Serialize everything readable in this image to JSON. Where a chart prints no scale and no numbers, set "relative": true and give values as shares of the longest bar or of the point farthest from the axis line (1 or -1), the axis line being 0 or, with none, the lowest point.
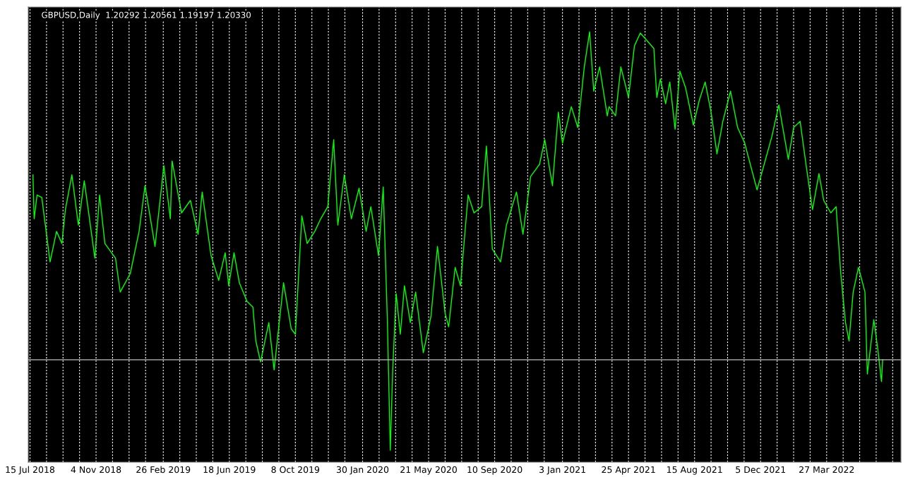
{
  "chart_data": {
    "type": "line",
    "title": "GBPUSD,Daily",
    "annotations": [
      "1.20292 1.20561 1.19197 1.20330"
    ],
    "relative": true,
    "grid": "x",
    "tick_labels": "x",
    "xlim": [
      "2018-07-12",
      "2022-07-31"
    ],
    "xticks": [
      {
        "value": "2018-07-15",
        "label": "15 Jul 2018"
      },
      {
        "value": "2018-08-12",
        "label": null
      },
      {
        "value": "2018-09-09",
        "label": null
      },
      {
        "value": "2018-10-07",
        "label": null
      },
      {
        "value": "2018-11-04",
        "label": "4 Nov 2018"
      },
      {
        "value": "2018-12-02",
        "label": null
      },
      {
        "value": "2018-12-30",
        "label": null
      },
      {
        "value": "2019-01-27",
        "label": null
      },
      {
        "value": "2019-02-26",
        "label": "26 Feb 2019"
      },
      {
        "value": "2019-03-26",
        "label": null
      },
      {
        "value": "2019-04-23",
        "label": null
      },
      {
        "value": "2019-05-21",
        "label": null
      },
      {
        "value": "2019-06-18",
        "label": "18 Jun 2019"
      },
      {
        "value": "2019-07-16",
        "label": null
      },
      {
        "value": "2019-08-13",
        "label": null
      },
      {
        "value": "2019-09-10",
        "label": null
      },
      {
        "value": "2019-10-08",
        "label": "8 Oct 2019"
      },
      {
        "value": "2019-11-05",
        "label": null
      },
      {
        "value": "2019-12-03",
        "label": null
      },
      {
        "value": "2019-12-31",
        "label": null
      },
      {
        "value": "2020-01-30",
        "label": "30 Jan 2020"
      },
      {
        "value": "2020-02-27",
        "label": null
      },
      {
        "value": "2020-03-26",
        "label": null
      },
      {
        "value": "2020-04-23",
        "label": null
      },
      {
        "value": "2020-05-21",
        "label": "21 May 2020"
      },
      {
        "value": "2020-06-18",
        "label": null
      },
      {
        "value": "2020-07-16",
        "label": null
      },
      {
        "value": "2020-08-13",
        "label": null
      },
      {
        "value": "2020-09-10",
        "label": "10 Sep 2020"
      },
      {
        "value": "2020-10-08",
        "label": null
      },
      {
        "value": "2020-11-05",
        "label": null
      },
      {
        "value": "2020-12-03",
        "label": null
      },
      {
        "value": "2021-01-03",
        "label": "3 Jan 2021"
      },
      {
        "value": "2021-01-31",
        "label": null
      },
      {
        "value": "2021-02-28",
        "label": null
      },
      {
        "value": "2021-03-28",
        "label": null
      },
      {
        "value": "2021-04-25",
        "label": "25 Apr 2021"
      },
      {
        "value": "2021-05-23",
        "label": null
      },
      {
        "value": "2021-06-20",
        "label": null
      },
      {
        "value": "2021-07-18",
        "label": null
      },
      {
        "value": "2021-08-15",
        "label": "15 Aug 2021"
      },
      {
        "value": "2021-09-12",
        "label": null
      },
      {
        "value": "2021-10-10",
        "label": null
      },
      {
        "value": "2021-11-07",
        "label": null
      },
      {
        "value": "2021-12-05",
        "label": "5 Dec 2021"
      },
      {
        "value": "2022-01-02",
        "label": null
      },
      {
        "value": "2022-01-30",
        "label": null
      },
      {
        "value": "2022-02-27",
        "label": null
      },
      {
        "value": "2022-03-27",
        "label": "27 Mar 2022"
      },
      {
        "value": "2022-04-24",
        "label": null
      },
      {
        "value": "2022-05-22",
        "label": null
      },
      {
        "value": "2022-06-19",
        "label": null
      },
      {
        "value": "2022-07-17",
        "label": null
      }
    ],
    "ref_lines": [
      {
        "axis": "y",
        "value": 0.216,
        "color": "#c0c0c0"
      }
    ],
    "series": [
      {
        "color": "#00ff00",
        "x": [
          "2018-07-20",
          "2018-07-22",
          "2018-07-27",
          "2018-08-04",
          "2018-08-18",
          "2018-08-29",
          "2018-09-07",
          "2018-09-13",
          "2018-09-24",
          "2018-10-05",
          "2018-10-15",
          "2018-11-02",
          "2018-11-10",
          "2018-11-19",
          "2018-12-07",
          "2018-12-15",
          "2019-01-01",
          "2019-01-16",
          "2019-01-26",
          "2019-02-12",
          "2019-02-27",
          "2019-03-10",
          "2019-03-13",
          "2019-03-29",
          "2019-04-13",
          "2019-04-26",
          "2019-05-03",
          "2019-05-18",
          "2019-05-31",
          "2019-06-11",
          "2019-06-17",
          "2019-06-26",
          "2019-07-05",
          "2019-07-18",
          "2019-07-28",
          "2019-08-02",
          "2019-08-10",
          "2019-08-24",
          "2019-09-02",
          "2019-09-18",
          "2019-10-01",
          "2019-10-08",
          "2019-10-19",
          "2019-10-28",
          "2019-11-10",
          "2019-11-20",
          "2019-12-02",
          "2019-12-12",
          "2019-12-19",
          "2019-12-30",
          "2020-01-11",
          "2020-01-24",
          "2020-02-05",
          "2020-02-13",
          "2020-02-26",
          "2020-03-05",
          "2020-03-12",
          "2020-03-17",
          "2020-03-21",
          "2020-03-27",
          "2020-04-03",
          "2020-04-10",
          "2020-04-20",
          "2020-04-29",
          "2020-05-12",
          "2020-05-25",
          "2020-06-05",
          "2020-06-18",
          "2020-06-24",
          "2020-07-05",
          "2020-07-14",
          "2020-07-27",
          "2020-08-06",
          "2020-08-19",
          "2020-08-27",
          "2020-09-06",
          "2020-09-20",
          "2020-09-30",
          "2020-10-17",
          "2020-10-28",
          "2020-11-10",
          "2020-11-25",
          "2020-12-04",
          "2020-12-17",
          "2020-12-27",
          "2021-01-03",
          "2021-01-18",
          "2021-01-29",
          "2021-02-09",
          "2021-02-18",
          "2021-02-25",
          "2021-03-07",
          "2021-03-20",
          "2021-03-23",
          "2021-04-03",
          "2021-04-12",
          "2021-04-25",
          "2021-05-05",
          "2021-05-15",
          "2021-05-25",
          "2021-06-07",
          "2021-06-12",
          "2021-06-18",
          "2021-06-27",
          "2021-07-04",
          "2021-07-13",
          "2021-07-21",
          "2021-07-31",
          "2021-08-13",
          "2021-08-23",
          "2021-09-02",
          "2021-09-12",
          "2021-09-22",
          "2021-10-02",
          "2021-10-15",
          "2021-10-27",
          "2021-11-08",
          "2021-11-29",
          "2021-12-11",
          "2021-12-24",
          "2022-01-05",
          "2022-01-21",
          "2022-01-30",
          "2022-02-10",
          "2022-02-20",
          "2022-03-03",
          "2022-03-14",
          "2022-03-22",
          "2022-04-03",
          "2022-04-12",
          "2022-04-20",
          "2022-04-28",
          "2022-05-04",
          "2022-05-11",
          "2022-05-20",
          "2022-05-31",
          "2022-06-04",
          "2022-06-15",
          "2022-06-22",
          "2022-06-28",
          "2022-06-30"
        ],
        "values": [
          0.658,
          0.553,
          0.61,
          0.604,
          0.45,
          0.523,
          0.494,
          0.575,
          0.658,
          0.538,
          0.644,
          0.459,
          0.61,
          0.494,
          0.459,
          0.378,
          0.422,
          0.523,
          0.632,
          0.487,
          0.68,
          0.553,
          0.691,
          0.567,
          0.597,
          0.516,
          0.617,
          0.465,
          0.406,
          0.472,
          0.393,
          0.472,
          0.4,
          0.356,
          0.342,
          0.261,
          0.211,
          0.305,
          0.192,
          0.4,
          0.29,
          0.277,
          0.56,
          0.494,
          0.523,
          0.553,
          0.582,
          0.742,
          0.538,
          0.658,
          0.553,
          0.626,
          0.523,
          0.582,
          0.465,
          0.629,
          0.312,
          0.0,
          0.189,
          0.374,
          0.277,
          0.393,
          0.305,
          0.378,
          0.233,
          0.32,
          0.487,
          0.327,
          0.295,
          0.437,
          0.393,
          0.61,
          0.567,
          0.582,
          0.727,
          0.481,
          0.45,
          0.538,
          0.617,
          0.516,
          0.654,
          0.683,
          0.742,
          0.632,
          0.808,
          0.734,
          0.821,
          0.771,
          0.916,
          1.0,
          0.858,
          0.916,
          0.799,
          0.821,
          0.799,
          0.916,
          0.843,
          0.966,
          0.997,
          0.981,
          0.96,
          0.843,
          0.887,
          0.828,
          0.88,
          0.767,
          0.906,
          0.865,
          0.777,
          0.836,
          0.88,
          0.808,
          0.708,
          0.786,
          0.858,
          0.771,
          0.734,
          0.622,
          0.683,
          0.749,
          0.825,
          0.695,
          0.771,
          0.786,
          0.683,
          0.575,
          0.661,
          0.597,
          0.567,
          0.582,
          0.422,
          0.305,
          0.261,
          0.378,
          0.437,
          0.378,
          0.182,
          0.312,
          0.239,
          0.164,
          0.216
        ]
      }
    ]
  }
}
